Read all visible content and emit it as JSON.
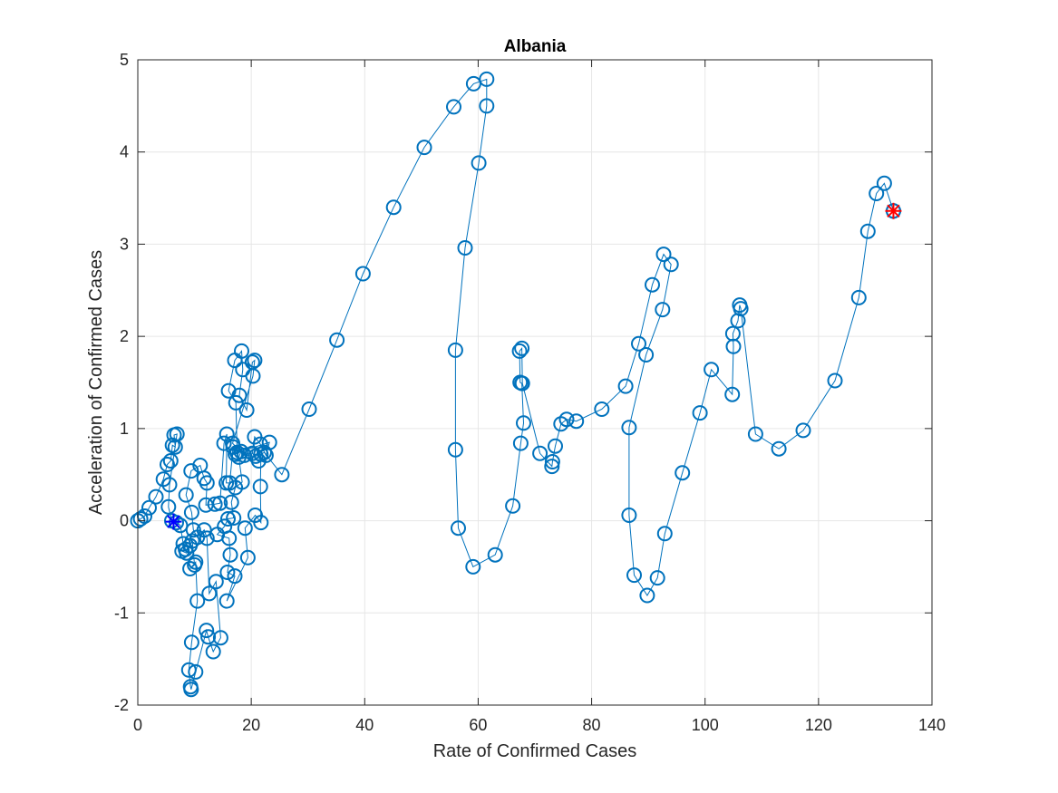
{
  "chart_data": {
    "type": "line",
    "title": "Albania",
    "xlabel": "Rate of Confirmed Cases",
    "ylabel": "Acceleration of Confirmed Cases",
    "xlim": [
      0,
      140
    ],
    "ylim": [
      -2,
      5
    ],
    "xticks": [
      0,
      20,
      40,
      60,
      80,
      100,
      120,
      140
    ],
    "yticks": [
      -2,
      -1,
      0,
      1,
      2,
      3,
      4,
      5
    ],
    "xtick_labels": [
      "0",
      "20",
      "40",
      "60",
      "80",
      "100",
      "120",
      "140"
    ],
    "ytick_labels": [
      "-2",
      "-1",
      "0",
      "1",
      "2",
      "3",
      "4",
      "5"
    ],
    "grid": true,
    "legend": "none",
    "colors": {
      "series": "#0072BD",
      "start_marker": "#0000FF",
      "end_marker": "#FF0000",
      "axis": "#262626",
      "grid": "#E6E6E6"
    },
    "series": [
      {
        "name": "trajectory",
        "marker": "circle",
        "points": [
          [
            0,
            0
          ],
          [
            0.5,
            0.02
          ],
          [
            1.2,
            0.05
          ],
          [
            2,
            0.14
          ],
          [
            3.2,
            0.26
          ],
          [
            4.5,
            0.45
          ],
          [
            5.2,
            0.61
          ],
          [
            5.8,
            0.65
          ],
          [
            6.1,
            0.82
          ],
          [
            6.6,
            0.8
          ],
          [
            6.4,
            0.93
          ],
          [
            6.9,
            0.94
          ],
          [
            5.6,
            0.39
          ],
          [
            5.4,
            0.15
          ],
          [
            6,
            0
          ],
          [
            6.8,
            -0.02
          ],
          [
            7.5,
            -0.05
          ],
          [
            8,
            -0.25
          ],
          [
            8.4,
            -0.31
          ],
          [
            7.8,
            -0.33
          ],
          [
            8.6,
            -0.35
          ],
          [
            9.2,
            -0.27
          ],
          [
            9.6,
            -0.22
          ],
          [
            10,
            -0.48
          ],
          [
            9.2,
            -0.52
          ],
          [
            10.2,
            -0.45
          ],
          [
            10.5,
            -0.87
          ],
          [
            9.5,
            -1.32
          ],
          [
            9,
            -1.62
          ],
          [
            9.3,
            -1.8
          ],
          [
            9.4,
            -1.83
          ],
          [
            10.2,
            -1.64
          ],
          [
            12.1,
            -1.19
          ],
          [
            12.4,
            -1.26
          ],
          [
            13.3,
            -1.42
          ],
          [
            14.6,
            -1.27
          ],
          [
            13.8,
            -0.66
          ],
          [
            12.6,
            -0.79
          ],
          [
            12.2,
            -0.19
          ],
          [
            11.7,
            -0.1
          ],
          [
            10.5,
            -0.18
          ],
          [
            9.8,
            -0.1
          ],
          [
            9.5,
            0.09
          ],
          [
            8.5,
            0.28
          ],
          [
            9.4,
            0.54
          ],
          [
            11,
            0.6
          ],
          [
            11.7,
            0.46
          ],
          [
            12.2,
            0.41
          ],
          [
            12,
            0.17
          ],
          [
            13.6,
            0.18
          ],
          [
            14.5,
            0.19
          ],
          [
            15.2,
            0.84
          ],
          [
            15.7,
            0.94
          ],
          [
            15.6,
            0.41
          ],
          [
            16.2,
            0.41
          ],
          [
            16.8,
            0.8
          ],
          [
            17.2,
            0.72
          ],
          [
            18.2,
            0.75
          ],
          [
            17.8,
            0.69
          ],
          [
            18.4,
            0.42
          ],
          [
            17.2,
            0.36
          ],
          [
            16.5,
            0.2
          ],
          [
            16.9,
            0.03
          ],
          [
            15.9,
            0.02
          ],
          [
            15.3,
            -0.06
          ],
          [
            14,
            -0.15
          ],
          [
            16.1,
            -0.19
          ],
          [
            16.3,
            -0.37
          ],
          [
            15.8,
            -0.56
          ],
          [
            17.1,
            -0.6
          ],
          [
            15.7,
            -0.87
          ],
          [
            19.4,
            -0.4
          ],
          [
            18.9,
            -0.08
          ],
          [
            20.7,
            0.06
          ],
          [
            21.7,
            -0.02
          ],
          [
            21.6,
            0.37
          ],
          [
            21.7,
            0.72
          ],
          [
            21.3,
            0.65
          ],
          [
            20.2,
            0.73
          ],
          [
            20.6,
            0.91
          ],
          [
            21.6,
            0.83
          ],
          [
            22.6,
            0.71
          ],
          [
            23.2,
            0.85
          ],
          [
            17.5,
            0.74
          ],
          [
            17.3,
            1.28
          ],
          [
            16,
            1.41
          ],
          [
            17.1,
            1.74
          ],
          [
            18.3,
            1.84
          ],
          [
            18.5,
            1.64
          ],
          [
            17.9,
            1.36
          ],
          [
            19.2,
            1.2
          ],
          [
            20.2,
            1.72
          ],
          [
            20.6,
            1.74
          ],
          [
            20.3,
            1.57
          ],
          [
            16.7,
            0.84
          ],
          [
            18.8,
            0.71
          ],
          [
            20.8,
            0.7
          ],
          [
            22.3,
            0.74
          ],
          [
            25.4,
            0.5
          ],
          [
            30.2,
            1.21
          ],
          [
            35.1,
            1.96
          ],
          [
            39.7,
            2.68
          ],
          [
            45.1,
            3.4
          ],
          [
            50.5,
            4.05
          ],
          [
            55.7,
            4.49
          ],
          [
            59.2,
            4.74
          ],
          [
            61.5,
            4.79
          ],
          [
            61.5,
            4.5
          ],
          [
            60.1,
            3.88
          ],
          [
            57.7,
            2.96
          ],
          [
            56,
            1.85
          ],
          [
            56,
            0.77
          ],
          [
            56.5,
            -0.08
          ],
          [
            59.1,
            -0.5
          ],
          [
            63,
            -0.37
          ],
          [
            66.1,
            0.16
          ],
          [
            67.5,
            0.84
          ],
          [
            68,
            1.06
          ],
          [
            67.7,
            1.49
          ],
          [
            67.4,
            1.5
          ],
          [
            67.3,
            1.84
          ],
          [
            67.7,
            1.87
          ],
          [
            67.8,
            1.49
          ],
          [
            70.9,
            0.73
          ],
          [
            73,
            0.59
          ],
          [
            73.1,
            0.64
          ],
          [
            73.6,
            0.81
          ],
          [
            74.6,
            1.05
          ],
          [
            75.6,
            1.1
          ],
          [
            77.3,
            1.08
          ],
          [
            81.8,
            1.21
          ],
          [
            86,
            1.46
          ],
          [
            88.3,
            1.92
          ],
          [
            90.7,
            2.56
          ],
          [
            92.7,
            2.89
          ],
          [
            94,
            2.78
          ],
          [
            92.5,
            2.29
          ],
          [
            89.6,
            1.8
          ],
          [
            86.6,
            1.01
          ],
          [
            86.6,
            0.06
          ],
          [
            87.5,
            -0.59
          ],
          [
            89.8,
            -0.81
          ],
          [
            91.6,
            -0.62
          ],
          [
            92.9,
            -0.14
          ],
          [
            96,
            0.52
          ],
          [
            99.1,
            1.17
          ],
          [
            101.1,
            1.64
          ],
          [
            104.8,
            1.37
          ],
          [
            105,
            1.89
          ],
          [
            104.9,
            2.03
          ],
          [
            105.8,
            2.17
          ],
          [
            106.1,
            2.34
          ],
          [
            106.3,
            2.3
          ],
          [
            108.9,
            0.94
          ],
          [
            113,
            0.78
          ],
          [
            117.3,
            0.98
          ],
          [
            122.9,
            1.52
          ],
          [
            127.1,
            2.42
          ],
          [
            128.7,
            3.14
          ],
          [
            130.2,
            3.55
          ],
          [
            131.6,
            3.66
          ],
          [
            133.2,
            3.36
          ]
        ]
      }
    ],
    "start_point": [
      6.3,
      -0.01
    ],
    "end_point": [
      133.2,
      3.36
    ]
  }
}
